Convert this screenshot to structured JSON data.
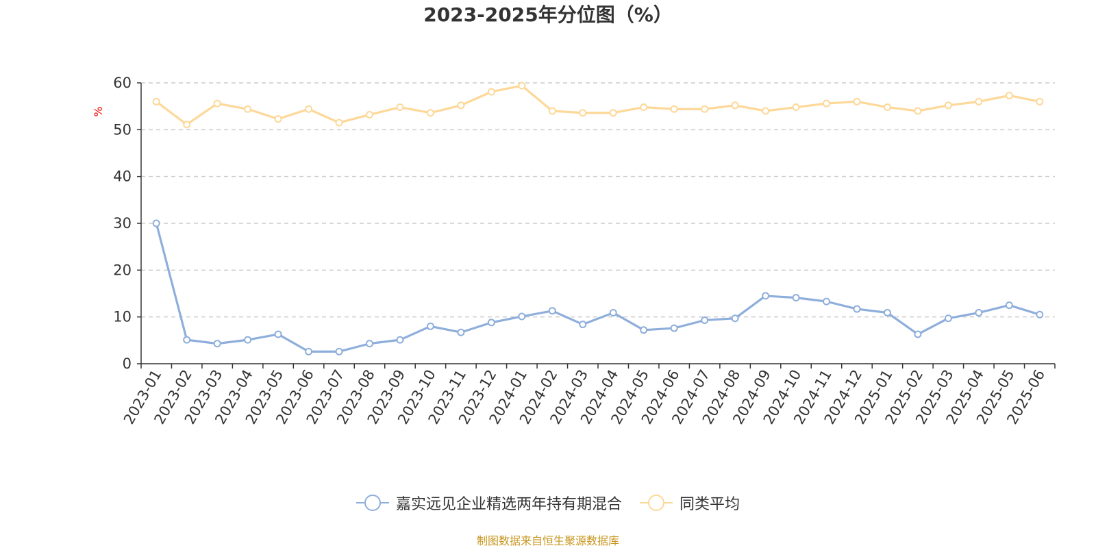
{
  "title": "2023-2025年分位图（%）",
  "source_note": "制图数据来自恒生聚源数据库",
  "colors": {
    "series_fund": "#8eaedb",
    "series_avg": "#fdd898",
    "grid": "#cccccc",
    "axis": "#333333",
    "y_unit": "#ff0000",
    "source": "#c8961e"
  },
  "chart_data": {
    "type": "line",
    "title": "2023-2025年分位图（%）",
    "ylabel": "%",
    "xlabel": "",
    "ylim": [
      0,
      60
    ],
    "yticks": [
      0,
      10,
      20,
      30,
      40,
      50,
      60
    ],
    "grid": true,
    "legend_position": "bottom-center",
    "categories": [
      "2023-01",
      "2023-02",
      "2023-03",
      "2023-04",
      "2023-05",
      "2023-06",
      "2023-07",
      "2023-08",
      "2023-09",
      "2023-10",
      "2023-11",
      "2023-12",
      "2024-01",
      "2024-02",
      "2024-03",
      "2024-04",
      "2024-05",
      "2024-06",
      "2024-07",
      "2024-08",
      "2024-09",
      "2024-10",
      "2024-11",
      "2024-12",
      "2025-01",
      "2025-02",
      "2025-03",
      "2025-04",
      "2025-05",
      "2025-06"
    ],
    "series": [
      {
        "name": "嘉实远见企业精选两年持有期混合",
        "color": "#8eaedb",
        "values": [
          30.0,
          5.1,
          4.3,
          5.1,
          6.3,
          2.6,
          2.6,
          4.3,
          5.1,
          8.0,
          6.7,
          8.8,
          10.1,
          11.3,
          8.4,
          10.9,
          7.2,
          7.6,
          9.3,
          9.7,
          14.5,
          14.1,
          13.3,
          11.7,
          10.9,
          6.3,
          9.7,
          10.9,
          12.5,
          10.5
        ]
      },
      {
        "name": "同类平均",
        "color": "#fdd898",
        "values": [
          56.0,
          51.1,
          55.6,
          54.4,
          52.3,
          54.4,
          51.5,
          53.2,
          54.8,
          53.6,
          55.2,
          58.1,
          59.4,
          54.0,
          53.6,
          53.6,
          54.8,
          54.4,
          54.4,
          55.2,
          54.0,
          54.8,
          55.6,
          56.0,
          54.8,
          54.0,
          55.2,
          56.0,
          57.3,
          56.0
        ]
      }
    ]
  }
}
